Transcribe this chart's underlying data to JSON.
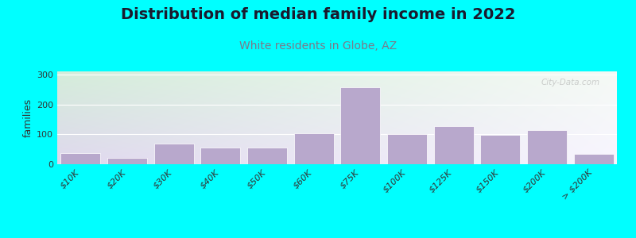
{
  "title": "Distribution of median family income in 2022",
  "subtitle": "White residents in Globe, AZ",
  "ylabel": "families",
  "categories": [
    "$10K",
    "$20K",
    "$30K",
    "$40K",
    "$50K",
    "$60K",
    "$75K",
    "$100K",
    "$125K",
    "$150K",
    "$200K",
    "> $200K"
  ],
  "values": [
    38,
    20,
    68,
    55,
    55,
    103,
    257,
    100,
    128,
    97,
    113,
    35
  ],
  "bar_color": "#b8a8cc",
  "background_outer": "#00ffff",
  "bg_top_left": "#d4edda",
  "bg_top_right": "#f0f8f0",
  "bg_bottom": "#e8e0ef",
  "title_fontsize": 14,
  "subtitle_fontsize": 10,
  "subtitle_color": "#7a7a8a",
  "ylabel_fontsize": 9,
  "tick_fontsize": 8,
  "ylim": [
    0,
    310
  ],
  "yticks": [
    0,
    100,
    200,
    300
  ],
  "watermark": "City-Data.com"
}
